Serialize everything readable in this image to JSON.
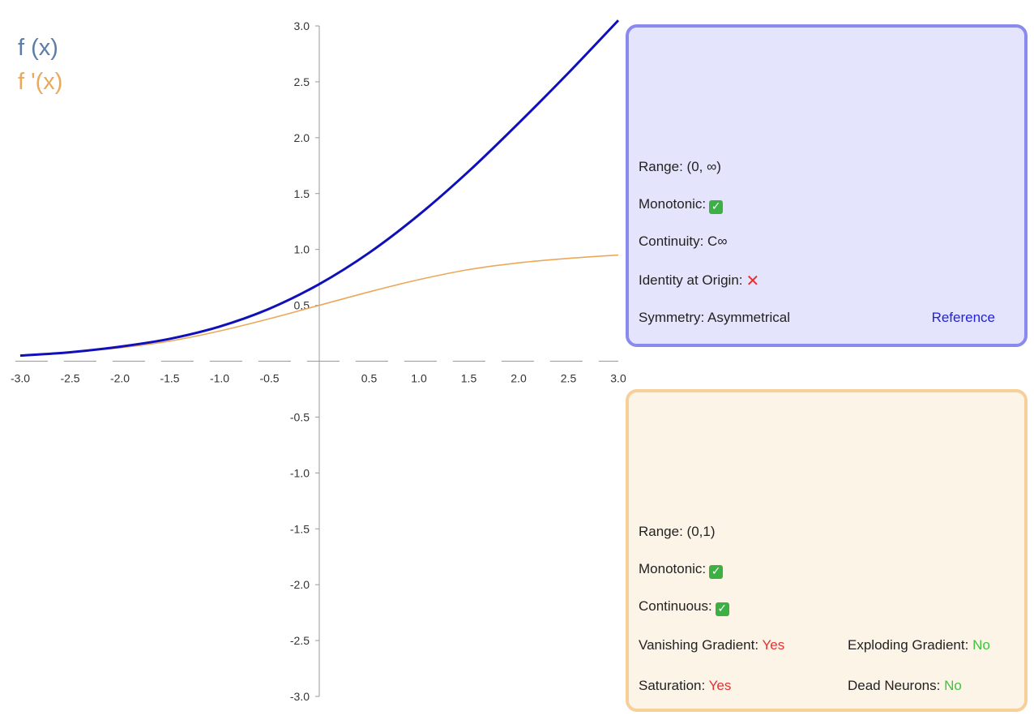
{
  "legend": {
    "f_label": "f (x)",
    "df_label": "f '(x)"
  },
  "colors": {
    "f_curve": "#1010bb",
    "df_curve": "#eba85a",
    "f_legend": "#5a7ea8",
    "df_legend": "#eba85a",
    "axis": "#999999",
    "tick_text": "#333333"
  },
  "function_panel": {
    "range_label": "Range: (0, ∞)",
    "monotonic_label": "Monotonic:",
    "monotonic_icon": "check-icon",
    "continuity_label": "Continuity: C∞",
    "identity_label": "Identity at Origin:",
    "identity_icon": "cross-icon",
    "symmetry_label": "Symmetry: Asymmetrical",
    "reference_link": "Reference"
  },
  "derivative_panel": {
    "range_label": "Range: (0,1)",
    "monotonic_label": "Monotonic:",
    "monotonic_icon": "check-icon",
    "continuous_label": "Continuous:",
    "continuous_icon": "check-icon",
    "vanishing_label": "Vanishing Gradient:",
    "vanishing_value": "Yes",
    "exploding_label": "Exploding Gradient:",
    "exploding_value": "No",
    "saturation_label": "Saturation:",
    "saturation_value": "Yes",
    "dead_label": "Dead Neurons:",
    "dead_value": "No"
  },
  "chart_data": {
    "type": "line",
    "title": "",
    "xlabel": "",
    "ylabel": "",
    "xlim": [
      -3.0,
      3.0
    ],
    "ylim": [
      -3.0,
      3.0
    ],
    "x_ticks": [
      "-3.0",
      "-2.5",
      "-2.0",
      "-1.5",
      "-1.0",
      "-0.5",
      "0.5",
      "1.0",
      "1.5",
      "2.0",
      "2.5",
      "3.0"
    ],
    "x_tick_values": [
      -3.0,
      -2.5,
      -2.0,
      -1.5,
      -1.0,
      -0.5,
      0.5,
      1.0,
      1.5,
      2.0,
      2.5,
      3.0
    ],
    "y_ticks": [
      "3.0",
      "2.5",
      "2.0",
      "1.5",
      "1.0",
      "0.5",
      "-0.5",
      "-1.0",
      "-1.5",
      "-2.0",
      "-2.5",
      "-3.0"
    ],
    "y_tick_values": [
      3.0,
      2.5,
      2.0,
      1.5,
      1.0,
      0.5,
      -0.5,
      -1.0,
      -1.5,
      -2.0,
      -2.5,
      -3.0
    ],
    "grid": false,
    "legend_position": "top-left",
    "x": [
      -3.0,
      -2.5,
      -2.0,
      -1.5,
      -1.0,
      -0.5,
      0.0,
      0.5,
      1.0,
      1.5,
      2.0,
      2.5,
      3.0
    ],
    "series": [
      {
        "name": "f (x)",
        "values": [
          0.05,
          0.08,
          0.13,
          0.2,
          0.31,
          0.47,
          0.69,
          0.97,
          1.31,
          1.7,
          2.13,
          2.58,
          3.05
        ]
      },
      {
        "name": "f '(x)",
        "values": [
          0.05,
          0.08,
          0.12,
          0.18,
          0.27,
          0.38,
          0.5,
          0.62,
          0.73,
          0.82,
          0.88,
          0.92,
          0.95
        ]
      }
    ]
  }
}
